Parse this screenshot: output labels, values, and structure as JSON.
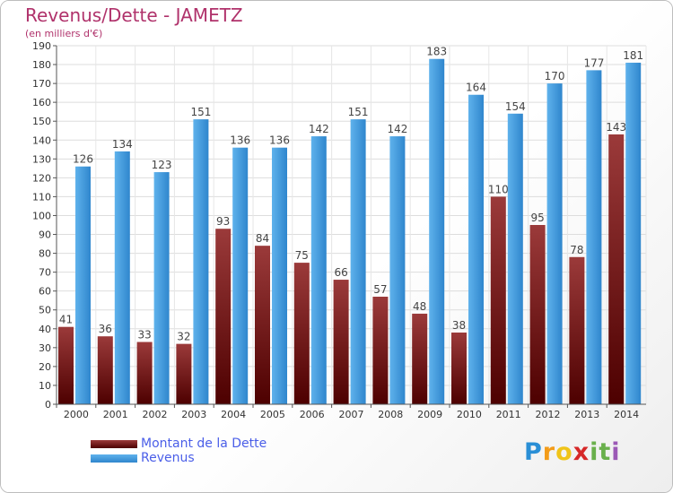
{
  "title": "Revenus/Dette - JAMETZ",
  "subtitle": "(en milliers d'€)",
  "brand": {
    "letters": [
      "P",
      "r",
      "o",
      "x",
      "i",
      "t",
      "i"
    ],
    "colors": [
      "#2a8fd6",
      "#f39c1a",
      "#f0c419",
      "#d62828",
      "#6ab04c",
      "#6ab04c",
      "#9b59b6"
    ]
  },
  "colors": {
    "debt_top": "#9b3a3a",
    "debt_bottom": "#4d0000",
    "revenue_top": "#5fb2ec",
    "revenue_bottom": "#2f86cd",
    "title": "#b0326b",
    "legend_text": "#4a5ee8"
  },
  "legend": {
    "placement": "bottom-left",
    "debt_label": "Montant de la Dette",
    "revenue_label": "Revenus"
  },
  "chart_data": {
    "type": "bar",
    "title": "Revenus/Dette - JAMETZ",
    "subtitle": "(en milliers d'€)",
    "xlabel": "",
    "ylabel": "",
    "ylim": [
      0,
      190
    ],
    "yticks": [
      0,
      10,
      20,
      30,
      40,
      50,
      60,
      70,
      80,
      90,
      100,
      110,
      120,
      130,
      140,
      150,
      160,
      170,
      180,
      190
    ],
    "grid": true,
    "categories": [
      "2000",
      "2001",
      "2002",
      "2003",
      "2004",
      "2005",
      "2006",
      "2007",
      "2008",
      "2009",
      "2010",
      "2011",
      "2012",
      "2013",
      "2014"
    ],
    "series": [
      {
        "name": "Montant de la Dette",
        "values": [
          41,
          36,
          33,
          32,
          93,
          84,
          75,
          66,
          57,
          48,
          38,
          110,
          95,
          78,
          143
        ]
      },
      {
        "name": "Revenus",
        "values": [
          126,
          134,
          123,
          151,
          136,
          136,
          142,
          151,
          142,
          183,
          164,
          154,
          170,
          177,
          181
        ]
      }
    ]
  }
}
